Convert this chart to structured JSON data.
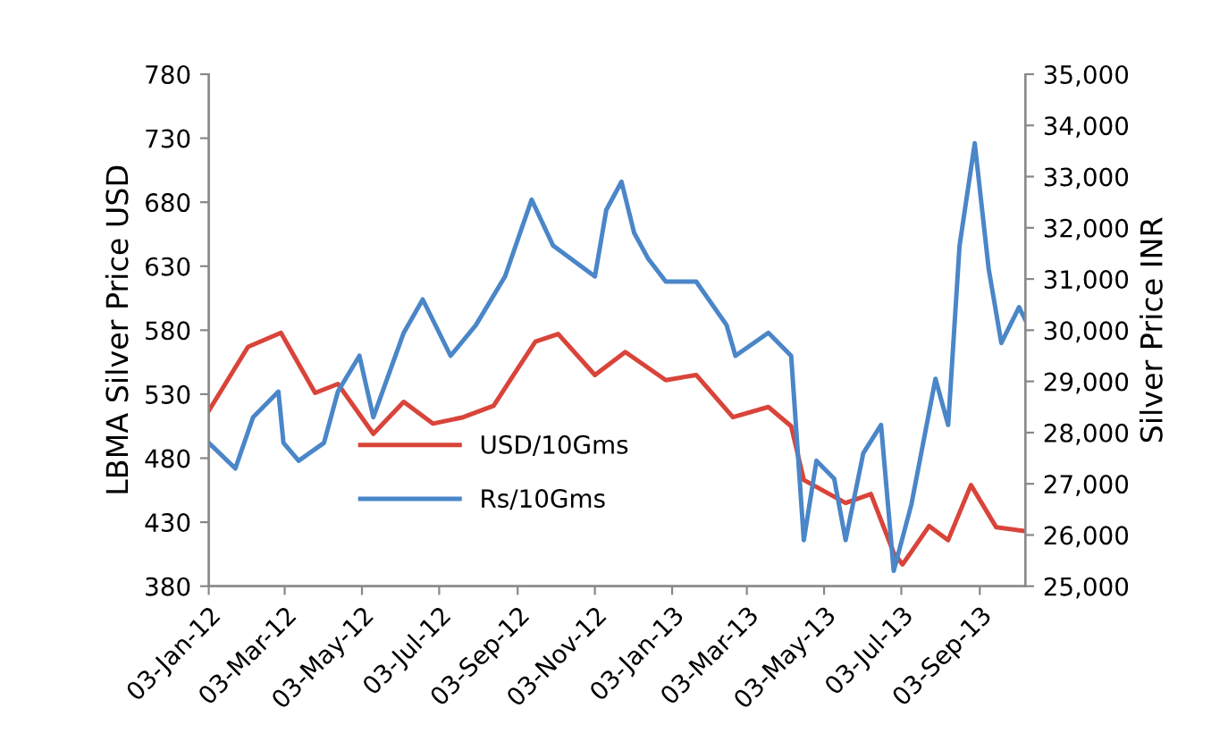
{
  "chart_data": {
    "type": "line",
    "ylabel": "LBMA Silver Price USD",
    "y2label": "Silver Price INR",
    "legend": "lower center",
    "grid": false,
    "marker": "none",
    "line_style": "solid",
    "xlim": [
      "2012-01-03",
      "2013-10-09"
    ],
    "xticks": [
      {
        "value": "2012-01-03",
        "label": "03-Jan-12"
      },
      {
        "value": "2012-03-03",
        "label": "03-Mar-12"
      },
      {
        "value": "2012-05-03",
        "label": "03-May-12"
      },
      {
        "value": "2012-07-03",
        "label": "03-Jul-12"
      },
      {
        "value": "2012-09-03",
        "label": "03-Sep-12"
      },
      {
        "value": "2012-11-03",
        "label": "03-Nov-12"
      },
      {
        "value": "2013-01-03",
        "label": "03-Jan-13"
      },
      {
        "value": "2013-03-03",
        "label": "03-Mar-13"
      },
      {
        "value": "2013-05-03",
        "label": "03-May-13"
      },
      {
        "value": "2013-07-03",
        "label": "03-Jul-13"
      },
      {
        "value": "2013-09-03",
        "label": "03-Sep-13"
      }
    ],
    "ylim": [
      380,
      780
    ],
    "yticks": [
      380,
      430,
      480,
      530,
      580,
      630,
      680,
      730,
      780
    ],
    "y2lim": [
      25000,
      35000
    ],
    "y2ticks": [
      {
        "value": 25000,
        "label": "25,000"
      },
      {
        "value": 26000,
        "label": "26,000"
      },
      {
        "value": 27000,
        "label": "27,000"
      },
      {
        "value": 28000,
        "label": "28,000"
      },
      {
        "value": 29000,
        "label": "29,000"
      },
      {
        "value": 30000,
        "label": "30,000"
      },
      {
        "value": 31000,
        "label": "31,000"
      },
      {
        "value": 32000,
        "label": "32,000"
      },
      {
        "value": 33000,
        "label": "33,000"
      },
      {
        "value": 34000,
        "label": "34,000"
      },
      {
        "value": 35000,
        "label": "35,000"
      }
    ],
    "series": [
      {
        "name": "USD/10Gms",
        "color": "#d9443a",
        "x": [
          "2012-01-03",
          "2012-02-03",
          "2012-02-29",
          "2012-03-27",
          "2012-04-14",
          "2012-05-12",
          "2012-06-05",
          "2012-06-28",
          "2012-07-22",
          "2012-08-15",
          "2012-09-03",
          "2012-09-17",
          "2012-10-05",
          "2012-11-03",
          "2012-11-27",
          "2012-12-29",
          "2013-01-22",
          "2013-02-20",
          "2013-03-20",
          "2013-04-07",
          "2013-04-17",
          "2013-05-20",
          "2013-06-09",
          "2013-06-27",
          "2013-07-04",
          "2013-07-25",
          "2013-08-09",
          "2013-08-27",
          "2013-09-16",
          "2013-10-09"
        ],
        "values": [
          517,
          567,
          578,
          531,
          538,
          499,
          524,
          507,
          512,
          521,
          550,
          571,
          577,
          545,
          563,
          541,
          545,
          512,
          520,
          505,
          463,
          445,
          452,
          406,
          397,
          427,
          416,
          459,
          426,
          423
        ]
      },
      {
        "name": "Rs/10Gms",
        "color": "#4a86c8",
        "axis": "y2",
        "x": [
          "2012-01-03",
          "2012-01-24",
          "2012-02-07",
          "2012-02-27",
          "2012-03-02",
          "2012-03-14",
          "2012-04-03",
          "2012-04-14",
          "2012-05-01",
          "2012-05-12",
          "2012-06-05",
          "2012-06-20",
          "2012-07-12",
          "2012-08-01",
          "2012-08-24",
          "2012-09-14",
          "2012-10-01",
          "2012-11-03",
          "2012-11-12",
          "2012-11-24",
          "2012-12-04",
          "2012-12-15",
          "2012-12-29",
          "2013-01-22",
          "2013-02-15",
          "2013-02-22",
          "2013-03-20",
          "2013-04-07",
          "2013-04-17",
          "2013-04-27",
          "2013-05-11",
          "2013-05-20",
          "2013-06-03",
          "2013-06-17",
          "2013-06-27",
          "2013-07-11",
          "2013-07-30",
          "2013-08-09",
          "2013-08-18",
          "2013-08-30",
          "2013-09-10",
          "2013-09-20",
          "2013-10-04",
          "2013-10-09"
        ],
        "values": [
          27800,
          27300,
          28300,
          28800,
          27800,
          27450,
          27800,
          28800,
          29500,
          28300,
          29950,
          30600,
          29500,
          30100,
          31050,
          32550,
          31650,
          31050,
          32350,
          32900,
          31900,
          31400,
          30950,
          30950,
          30100,
          29500,
          29950,
          29500,
          25900,
          27450,
          27100,
          25900,
          27600,
          28150,
          25300,
          26600,
          29050,
          28150,
          31650,
          33650,
          31200,
          29750,
          30450,
          30200
        ]
      }
    ]
  }
}
